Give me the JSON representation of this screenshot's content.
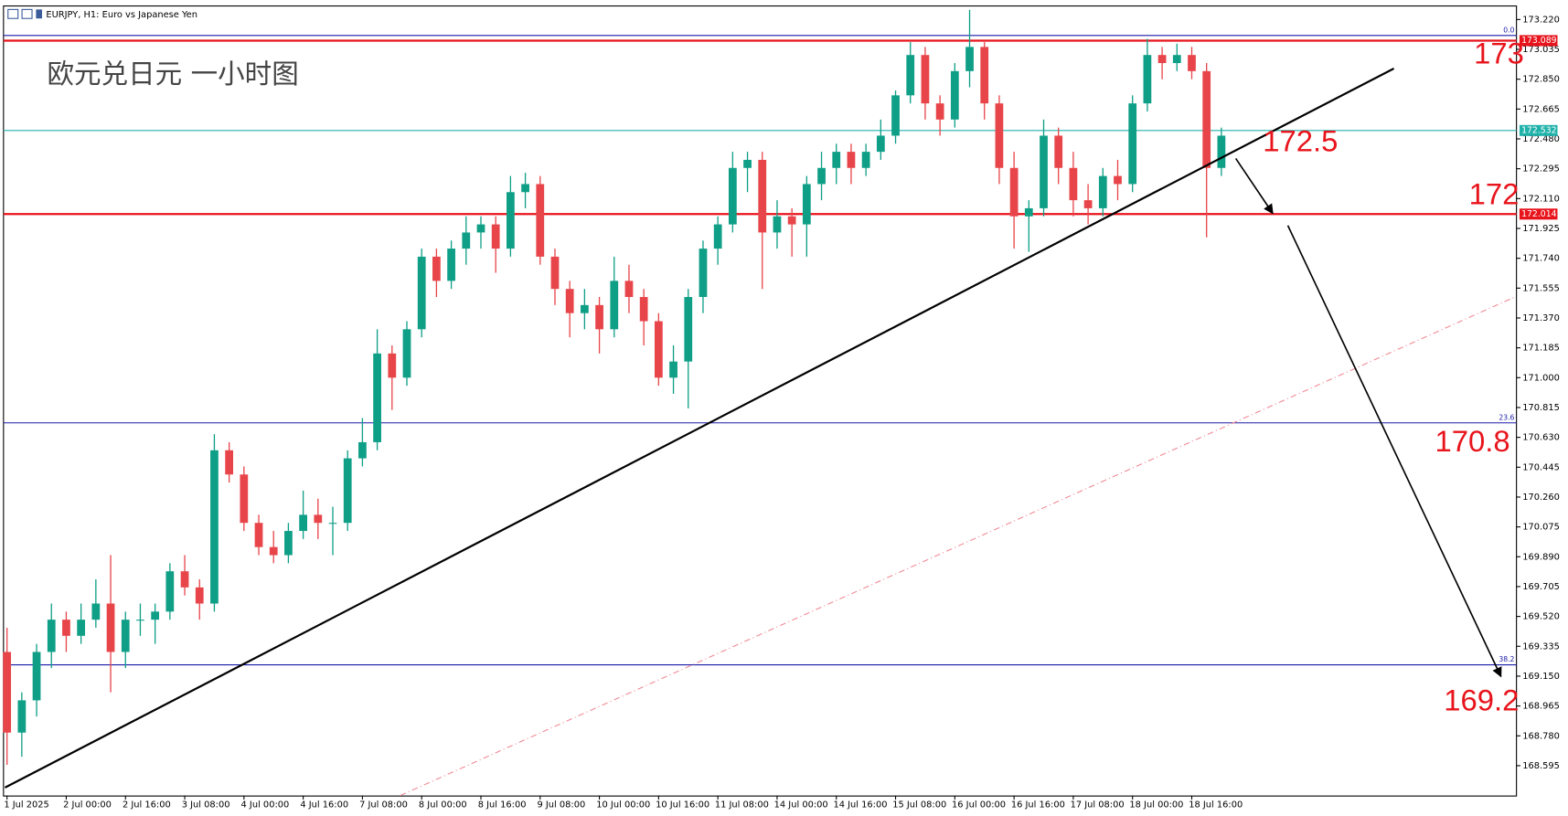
{
  "chart_data": {
    "type": "candlestick",
    "title": "EURJPY, H1:  Euro vs Japanese Yen",
    "caption": "欧元兑日元 一小时图",
    "annotations": [
      "173",
      "172.5",
      "172",
      "170.8",
      "169.2"
    ],
    "up_color": "#0f9f87",
    "down_color": "#e8454a",
    "ylim": [
      168.41,
      173.307
    ],
    "yticks": [
      {
        "value": 173.22,
        "label": "173.220"
      },
      {
        "value": 173.035,
        "label": "173.035"
      },
      {
        "value": 172.85,
        "label": "172.850"
      },
      {
        "value": 172.665,
        "label": "172.665"
      },
      {
        "value": 172.48,
        "label": "172.480"
      },
      {
        "value": 172.295,
        "label": "172.295"
      },
      {
        "value": 172.11,
        "label": "172.110"
      },
      {
        "value": 171.925,
        "label": "171.925"
      },
      {
        "value": 171.74,
        "label": "171.740"
      },
      {
        "value": 171.555,
        "label": "171.555"
      },
      {
        "value": 171.37,
        "label": "171.370"
      },
      {
        "value": 171.185,
        "label": "171.185"
      },
      {
        "value": 171,
        "label": "171.000"
      },
      {
        "value": 170.815,
        "label": "170.815"
      },
      {
        "value": 170.63,
        "label": "170.630"
      },
      {
        "value": 170.445,
        "label": "170.445"
      },
      {
        "value": 170.26,
        "label": "170.260"
      },
      {
        "value": 170.075,
        "label": "170.075"
      },
      {
        "value": 169.89,
        "label": "169.890"
      },
      {
        "value": 169.705,
        "label": "169.705"
      },
      {
        "value": 169.52,
        "label": "169.520"
      },
      {
        "value": 169.335,
        "label": "169.335"
      },
      {
        "value": 169.15,
        "label": "169.150"
      },
      {
        "value": 168.965,
        "label": "168.965"
      },
      {
        "value": 168.78,
        "label": "168.780"
      },
      {
        "value": 168.595,
        "label": "168.595"
      }
    ],
    "levels": [
      {
        "value": 173.089,
        "color": "#e8141c"
      },
      {
        "value": 172.532,
        "color": "#20b2aa"
      },
      {
        "value": 172.014,
        "color": "#e8141c"
      }
    ],
    "fib_levels": [
      {
        "level": {
          "value": 0,
          "label": "0.0"
        },
        "price": 173.121
      },
      {
        "level": 23.6,
        "price": 170.72
      },
      {
        "level": 38.2,
        "price": 169.22
      }
    ],
    "fib_color": "#1a1aa8",
    "categories": [
      "1 Jul 2025",
      null,
      null,
      null,
      "2 Jul 00:00",
      null,
      null,
      null,
      "2 Jul 16:00",
      null,
      null,
      null,
      "3 Jul 08:00",
      null,
      null,
      null,
      "4 Jul 00:00",
      null,
      null,
      null,
      "4 Jul 16:00",
      null,
      null,
      null,
      "7 Jul 08:00",
      null,
      null,
      null,
      "8 Jul 00:00",
      null,
      null,
      null,
      "8 Jul 16:00",
      null,
      null,
      null,
      "9 Jul 08:00",
      null,
      null,
      null,
      "10 Jul 00:00",
      null,
      null,
      null,
      "10 Jul 16:00",
      null,
      null,
      null,
      "11 Jul 08:00",
      null,
      null,
      null,
      "14 Jul 00:00",
      null,
      null,
      null,
      "14 Jul 16:00",
      null,
      null,
      null,
      "15 Jul 08:00",
      null,
      null,
      null,
      "16 Jul 00:00",
      null,
      null,
      null,
      "16 Jul 16:00",
      null,
      null,
      null,
      "17 Jul 08:00",
      null,
      null,
      null,
      "18 Jul 00:00",
      null,
      null,
      null,
      "18 Jul 16:00",
      null,
      null
    ],
    "ohlc": [
      [
        169.3,
        169.45,
        168.6,
        168.8
      ],
      [
        168.8,
        169.05,
        168.65,
        169.0
      ],
      [
        169.0,
        169.35,
        168.9,
        169.3
      ],
      [
        169.3,
        169.6,
        169.2,
        169.5
      ],
      [
        169.5,
        169.55,
        169.3,
        169.4
      ],
      [
        169.4,
        169.6,
        169.35,
        169.5
      ],
      [
        169.5,
        169.75,
        169.45,
        169.6
      ],
      [
        169.6,
        169.9,
        169.05,
        169.3
      ],
      [
        169.3,
        169.55,
        169.2,
        169.5
      ],
      [
        169.5,
        169.6,
        169.4,
        169.5
      ],
      [
        169.5,
        169.6,
        169.35,
        169.55
      ],
      [
        169.55,
        169.85,
        169.5,
        169.8
      ],
      [
        169.8,
        169.9,
        169.65,
        169.7
      ],
      [
        169.7,
        169.75,
        169.5,
        169.6
      ],
      [
        169.6,
        170.65,
        169.55,
        170.55
      ],
      [
        170.55,
        170.6,
        170.35,
        170.4
      ],
      [
        170.4,
        170.45,
        170.05,
        170.1
      ],
      [
        170.1,
        170.15,
        169.9,
        169.95
      ],
      [
        169.95,
        170.05,
        169.85,
        169.9
      ],
      [
        169.9,
        170.1,
        169.85,
        170.05
      ],
      [
        170.05,
        170.3,
        170.0,
        170.15
      ],
      [
        170.15,
        170.25,
        170.0,
        170.1
      ],
      [
        170.1,
        170.2,
        169.9,
        170.1
      ],
      [
        170.1,
        170.55,
        170.05,
        170.5
      ],
      [
        170.5,
        170.75,
        170.45,
        170.6
      ],
      [
        170.6,
        171.3,
        170.55,
        171.15
      ],
      [
        171.15,
        171.2,
        170.8,
        171.0
      ],
      [
        171.0,
        171.35,
        170.95,
        171.3
      ],
      [
        171.3,
        171.8,
        171.25,
        171.75
      ],
      [
        171.75,
        171.8,
        171.5,
        171.6
      ],
      [
        171.6,
        171.85,
        171.55,
        171.8
      ],
      [
        171.8,
        172.0,
        171.7,
        171.9
      ],
      [
        171.9,
        172.0,
        171.8,
        171.95
      ],
      [
        171.95,
        172.0,
        171.65,
        171.8
      ],
      [
        171.8,
        172.25,
        171.75,
        172.15
      ],
      [
        172.15,
        172.27,
        172.05,
        172.2
      ],
      [
        172.2,
        172.25,
        171.7,
        171.75
      ],
      [
        171.75,
        171.8,
        171.45,
        171.55
      ],
      [
        171.55,
        171.6,
        171.25,
        171.4
      ],
      [
        171.4,
        171.55,
        171.3,
        171.45
      ],
      [
        171.45,
        171.5,
        171.15,
        171.3
      ],
      [
        171.3,
        171.75,
        171.25,
        171.6
      ],
      [
        171.6,
        171.7,
        171.4,
        171.5
      ],
      [
        171.5,
        171.55,
        171.2,
        171.35
      ],
      [
        171.35,
        171.4,
        170.95,
        171.0
      ],
      [
        171.0,
        171.2,
        170.9,
        171.1
      ],
      [
        171.1,
        171.55,
        170.81,
        171.5
      ],
      [
        171.5,
        171.85,
        171.4,
        171.8
      ],
      [
        171.8,
        172.0,
        171.7,
        171.95
      ],
      [
        171.95,
        172.4,
        171.9,
        172.3
      ],
      [
        172.3,
        172.4,
        172.15,
        172.35
      ],
      [
        172.35,
        172.4,
        171.55,
        171.9
      ],
      [
        171.9,
        172.1,
        171.8,
        172.0
      ],
      [
        172.0,
        172.05,
        171.75,
        171.95
      ],
      [
        171.95,
        172.25,
        171.75,
        172.2
      ],
      [
        172.2,
        172.4,
        172.1,
        172.3
      ],
      [
        172.3,
        172.45,
        172.2,
        172.4
      ],
      [
        172.4,
        172.45,
        172.2,
        172.3
      ],
      [
        172.3,
        172.45,
        172.25,
        172.4
      ],
      [
        172.4,
        172.6,
        172.35,
        172.5
      ],
      [
        172.5,
        172.78,
        172.45,
        172.75
      ],
      [
        172.75,
        173.08,
        172.7,
        173.0
      ],
      [
        173.0,
        173.05,
        172.6,
        172.7
      ],
      [
        172.7,
        172.75,
        172.5,
        172.6
      ],
      [
        172.6,
        172.95,
        172.55,
        172.9
      ],
      [
        172.9,
        173.28,
        172.8,
        173.05
      ],
      [
        173.05,
        173.08,
        172.6,
        172.7
      ],
      [
        172.7,
        172.75,
        172.2,
        172.3
      ],
      [
        172.3,
        172.4,
        171.8,
        172.0
      ],
      [
        172.0,
        172.1,
        171.78,
        172.05
      ],
      [
        172.05,
        172.6,
        172.0,
        172.5
      ],
      [
        172.5,
        172.55,
        172.2,
        172.3
      ],
      [
        172.3,
        172.4,
        172.0,
        172.1
      ],
      [
        172.1,
        172.2,
        171.95,
        172.05
      ],
      [
        172.05,
        172.3,
        172.0,
        172.25
      ],
      [
        172.25,
        172.35,
        172.1,
        172.2
      ],
      [
        172.2,
        172.75,
        172.15,
        172.7
      ],
      [
        172.7,
        173.1,
        172.65,
        173.0
      ],
      [
        173.0,
        173.05,
        172.85,
        172.95
      ],
      [
        172.95,
        173.07,
        172.9,
        173.0
      ],
      [
        173.0,
        173.05,
        172.85,
        172.9
      ],
      [
        172.9,
        172.95,
        171.87,
        172.3
      ],
      [
        172.3,
        172.55,
        172.25,
        172.5
      ]
    ]
  }
}
